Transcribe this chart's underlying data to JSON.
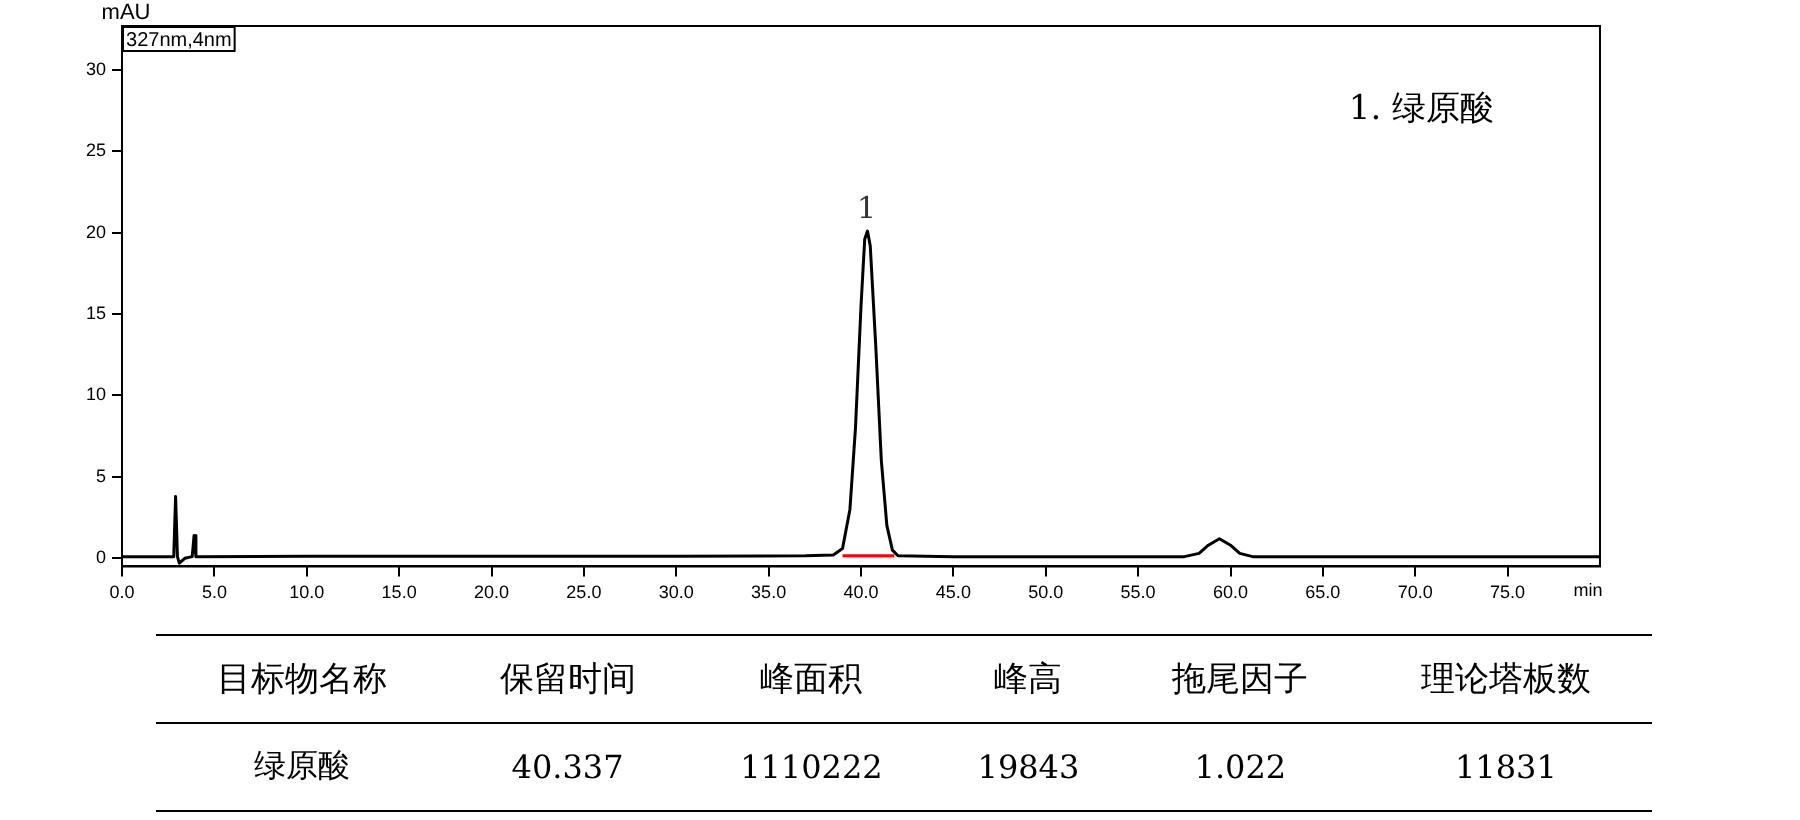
{
  "chart_data": [
    {
      "type": "line",
      "xlabel": "min",
      "ylabel": "mAU",
      "annotations": [
        "327nm,4nm",
        {
          "text": "1",
          "x": 40.3,
          "y": 20.1
        },
        "1. 绿原酸"
      ],
      "xlim": [
        0,
        80
      ],
      "ylim": [
        -0.5,
        32.7
      ],
      "xticks": [
        {
          "value": 0,
          "label": "0.0"
        },
        {
          "value": 5,
          "label": "5.0"
        },
        {
          "value": 10,
          "label": "10.0"
        },
        {
          "value": 15,
          "label": "15.0"
        },
        {
          "value": 20,
          "label": "20.0"
        },
        {
          "value": 25,
          "label": "25.0"
        },
        {
          "value": 30,
          "label": "30.0"
        },
        {
          "value": 35,
          "label": "35.0"
        },
        {
          "value": 40,
          "label": "40.0"
        },
        {
          "value": 45,
          "label": "45.0"
        },
        {
          "value": 50,
          "label": "50.0"
        },
        {
          "value": 55,
          "label": "55.0"
        },
        {
          "value": 60,
          "label": "60.0"
        },
        {
          "value": 65,
          "label": "65.0"
        },
        {
          "value": 70,
          "label": "70.0"
        },
        {
          "value": 75,
          "label": "75.0"
        }
      ],
      "yticks": [
        0,
        5,
        10,
        15,
        20,
        25,
        30
      ],
      "grid": false,
      "legend": false,
      "marker": "none",
      "line_style": "solid",
      "series": [
        {
          "color": "#000000",
          "x": [
            0,
            2.8,
            2.9,
            3.0,
            3.1,
            3.4,
            3.8,
            3.9,
            4.0,
            10,
            20,
            30,
            37,
            38.5,
            39.0,
            39.4,
            39.7,
            40.0,
            40.2,
            40.35,
            40.5,
            40.8,
            41.1,
            41.4,
            41.7,
            42,
            45,
            57.5,
            58.3,
            58.8,
            59.4,
            60,
            60.5,
            61.2,
            70,
            80
          ],
          "values": [
            0.1,
            0.1,
            3.8,
            0.1,
            -0.3,
            0.0,
            0.1,
            1.4,
            0.1,
            0.12,
            0.12,
            0.12,
            0.15,
            0.2,
            0.6,
            3,
            8,
            15.5,
            19.6,
            20.1,
            19.2,
            13,
            6,
            2,
            0.5,
            0.15,
            0.1,
            0.1,
            0.3,
            0.8,
            1.2,
            0.8,
            0.3,
            0.1,
            0.1,
            0.1
          ]
        },
        {
          "color": "#ff0000",
          "x": [
            39.0,
            41.8
          ],
          "values": [
            0.15,
            0.15
          ]
        }
      ]
    },
    {
      "type": "other",
      "categories": [
        "目标物名称",
        "保留时间",
        "峰面积",
        "峰高",
        "拖尾因子",
        "理论塔板数"
      ],
      "value_labels": [
        "绿原酸",
        "40.337",
        "1110222",
        "19843",
        "1.022",
        "11831"
      ]
    }
  ]
}
